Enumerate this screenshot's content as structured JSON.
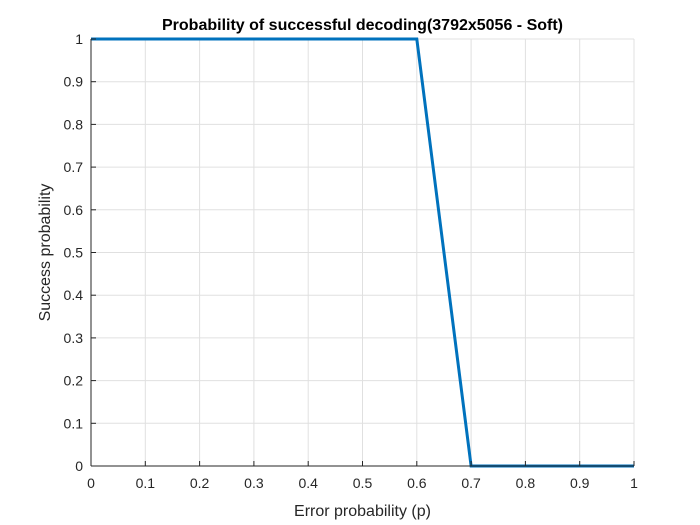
{
  "chart_data": {
    "type": "line",
    "title": "Probability of successful decoding(3792x5056 - Soft)",
    "xlabel": "Error probability (p)",
    "ylabel": "Success probability",
    "xlim": [
      0,
      1
    ],
    "ylim": [
      0,
      1
    ],
    "xticks": [
      "0",
      "0.1",
      "0.2",
      "0.3",
      "0.4",
      "0.5",
      "0.6",
      "0.7",
      "0.8",
      "0.9",
      "1"
    ],
    "yticks": [
      "0",
      "0.1",
      "0.2",
      "0.3",
      "0.4",
      "0.5",
      "0.6",
      "0.7",
      "0.8",
      "0.9",
      "1"
    ],
    "grid": true,
    "series": [
      {
        "color": "#0072bd",
        "x": [
          0,
          0.1,
          0.2,
          0.3,
          0.4,
          0.5,
          0.6,
          0.7,
          0.8,
          0.9,
          1
        ],
        "y": [
          1,
          1,
          1,
          1,
          1,
          1,
          1,
          0,
          0,
          0,
          0
        ]
      }
    ]
  }
}
